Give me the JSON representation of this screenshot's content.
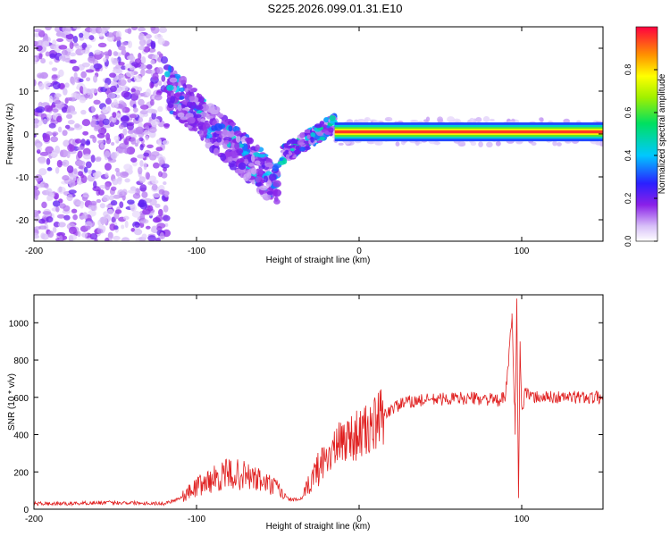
{
  "title": "S225.2026.099.01.31.E10",
  "colors": {
    "snr_line": "#e02020",
    "axis": "#000000",
    "background": "#ffffff"
  },
  "chart_data": [
    {
      "type": "heatmap",
      "title": "S225.2026.099.01.31.E10",
      "xlabel": "Height of straight line (km)",
      "ylabel": "Frequency (Hz)",
      "xlim": [
        -200,
        150
      ],
      "ylim": [
        -25,
        25
      ],
      "x_ticks": [
        -200,
        -100,
        0,
        100
      ],
      "x_tick_labels": [
        "-200",
        "-100",
        "0",
        "100"
      ],
      "y_ticks": [
        -20,
        -10,
        0,
        10,
        20
      ],
      "y_tick_labels": [
        "-20",
        "-10",
        "0",
        "10",
        "20"
      ],
      "colorbar": {
        "label": "Normalized spectral amplitude",
        "range": [
          0,
          1
        ],
        "ticks": [
          0,
          0.2,
          0.4,
          0.6,
          0.8
        ],
        "tick_labels": [
          "0.0",
          "0.2",
          "0.4",
          "0.6",
          "0.8"
        ]
      },
      "features": [
        {
          "region": "noise",
          "x_range": [
            -200,
            -120
          ],
          "freq_range": [
            -25,
            25
          ],
          "amplitude": 0.05
        },
        {
          "region": "descending trace",
          "x_start": -118,
          "freq_start": 11,
          "x_end": -50,
          "freq_end": -12,
          "amplitude": 0.15
        },
        {
          "region": "recovery",
          "x_start": -48,
          "freq_start": -5,
          "x_end": -15,
          "freq_end": 2.5,
          "amplitude": 0.3
        },
        {
          "region": "steady line",
          "x_start": -15,
          "x_end": 150,
          "freq": 0.5,
          "amplitude": 0.95
        }
      ]
    },
    {
      "type": "line",
      "xlabel": "Height of straight line (km)",
      "ylabel": "SNR (10 * v/v)",
      "xlim": [
        -200,
        150
      ],
      "ylim": [
        0,
        1150
      ],
      "x_ticks": [
        -200,
        -100,
        0,
        100
      ],
      "x_tick_labels": [
        "-200",
        "-100",
        "0",
        "100"
      ],
      "y_ticks": [
        0,
        200,
        400,
        600,
        800,
        1000
      ],
      "y_tick_labels": [
        "0",
        "200",
        "400",
        "600",
        "800",
        "1000"
      ],
      "series": [
        {
          "name": "SNR",
          "x": [
            -200,
            -180,
            -160,
            -140,
            -120,
            -110,
            -100,
            -90,
            -80,
            -70,
            -60,
            -50,
            -45,
            -40,
            -35,
            -30,
            -25,
            -20,
            -15,
            -10,
            -5,
            0,
            5,
            10,
            15,
            20,
            25,
            30,
            40,
            50,
            60,
            70,
            80,
            85,
            90,
            92,
            94,
            96,
            97,
            98,
            99,
            100,
            102,
            105,
            110,
            120,
            130,
            140,
            150
          ],
          "values": [
            30,
            30,
            35,
            35,
            30,
            60,
            120,
            160,
            190,
            180,
            150,
            110,
            60,
            50,
            55,
            150,
            220,
            280,
            320,
            370,
            390,
            400,
            420,
            450,
            500,
            540,
            560,
            575,
            585,
            590,
            595,
            595,
            590,
            580,
            600,
            800,
            1050,
            400,
            1130,
            60,
            900,
            500,
            650,
            600,
            600,
            600,
            600,
            600,
            600
          ]
        }
      ]
    }
  ]
}
